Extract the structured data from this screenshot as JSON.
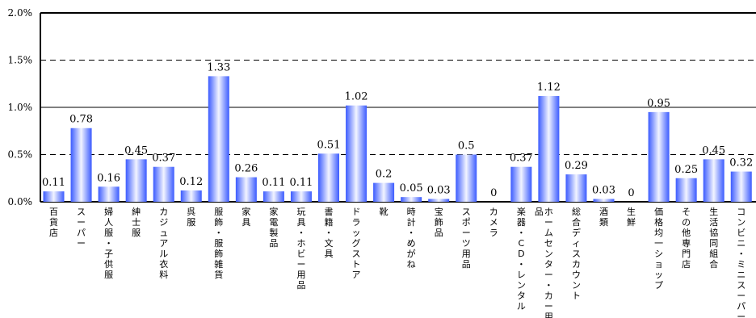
{
  "chart_data": {
    "type": "bar",
    "title": "",
    "xlabel": "",
    "ylabel": "",
    "ylim": [
      0,
      2.0
    ],
    "y_ticks": [
      "0.0%",
      "0.5%",
      "1.0%",
      "1.5%",
      "2.0%"
    ],
    "y_tick_values": [
      0,
      0.5,
      1.0,
      1.5,
      2.0
    ],
    "grid": "dashed horizontal at 0.5%, 1.5%; solid at 1.0%",
    "legend": "none",
    "bar_color_edge": "#3b5bff",
    "bar_color_center": "#f2f4ff",
    "categories": [
      "百貨店",
      "スーパー",
      "婦人服・子供服",
      "紳士服",
      "カジュアル衣料",
      "呉服",
      "服飾・服飾雑貨",
      "家具",
      "家電製品",
      "玩具・ホビー用品",
      "書籍・文具",
      "ドラッグストア",
      "靴",
      "時計・めがね",
      "宝飾品",
      "スポーツ用品",
      "カメラ",
      "楽器・CD・レンタル",
      "ホームセンター・カー用品",
      "総合ディスカウント",
      "酒類",
      "生鮮",
      "価格均一ショップ",
      "その他専門店",
      "生活協同組合",
      "コンビニ・ミニスーパー"
    ],
    "category_label_lines": [
      [
        "百貨店"
      ],
      [
        "スーパー"
      ],
      [
        "婦人服・子供服"
      ],
      [
        "紳士服"
      ],
      [
        "カジュアル衣料"
      ],
      [
        "呉服"
      ],
      [
        "服飾・服飾雑貨"
      ],
      [
        "家具"
      ],
      [
        "家電製品"
      ],
      [
        "玩具・ホビー用品"
      ],
      [
        "書籍・文具"
      ],
      [
        "ドラッグストア"
      ],
      [
        "靴"
      ],
      [
        "時計・めがね"
      ],
      [
        "宝飾品"
      ],
      [
        "スポーツ用品"
      ],
      [
        "カメラ"
      ],
      [
        "楽器・CD・レンタル"
      ],
      [
        "ホームセンター・カー用",
        "品"
      ],
      [
        "総合ディスカウント"
      ],
      [
        "酒類"
      ],
      [
        "生鮮"
      ],
      [
        "価格均一ショップ"
      ],
      [
        "その他専門店"
      ],
      [
        "生活協同組合"
      ],
      [
        "コンビニ・ミニスーパー"
      ]
    ],
    "values": [
      0.11,
      0.78,
      0.16,
      0.45,
      0.37,
      0.12,
      1.33,
      0.26,
      0.11,
      0.11,
      0.51,
      1.02,
      0.2,
      0.05,
      0.03,
      0.5,
      0,
      0.37,
      1.12,
      0.29,
      0.03,
      0,
      0.95,
      0.25,
      0.45,
      0.32
    ],
    "value_labels": [
      "0.11",
      "0.78",
      "0.16",
      "0.45",
      "0.37",
      "0.12",
      "1.33",
      "0.26",
      "0.11",
      "0.11",
      "0.51",
      "1.02",
      "0.2",
      "0.05",
      "0.03",
      "0.5",
      "0",
      "0.37",
      "1.12",
      "0.29",
      "0.03",
      "0",
      "0.95",
      "0.25",
      "0.45",
      "0.32"
    ]
  }
}
